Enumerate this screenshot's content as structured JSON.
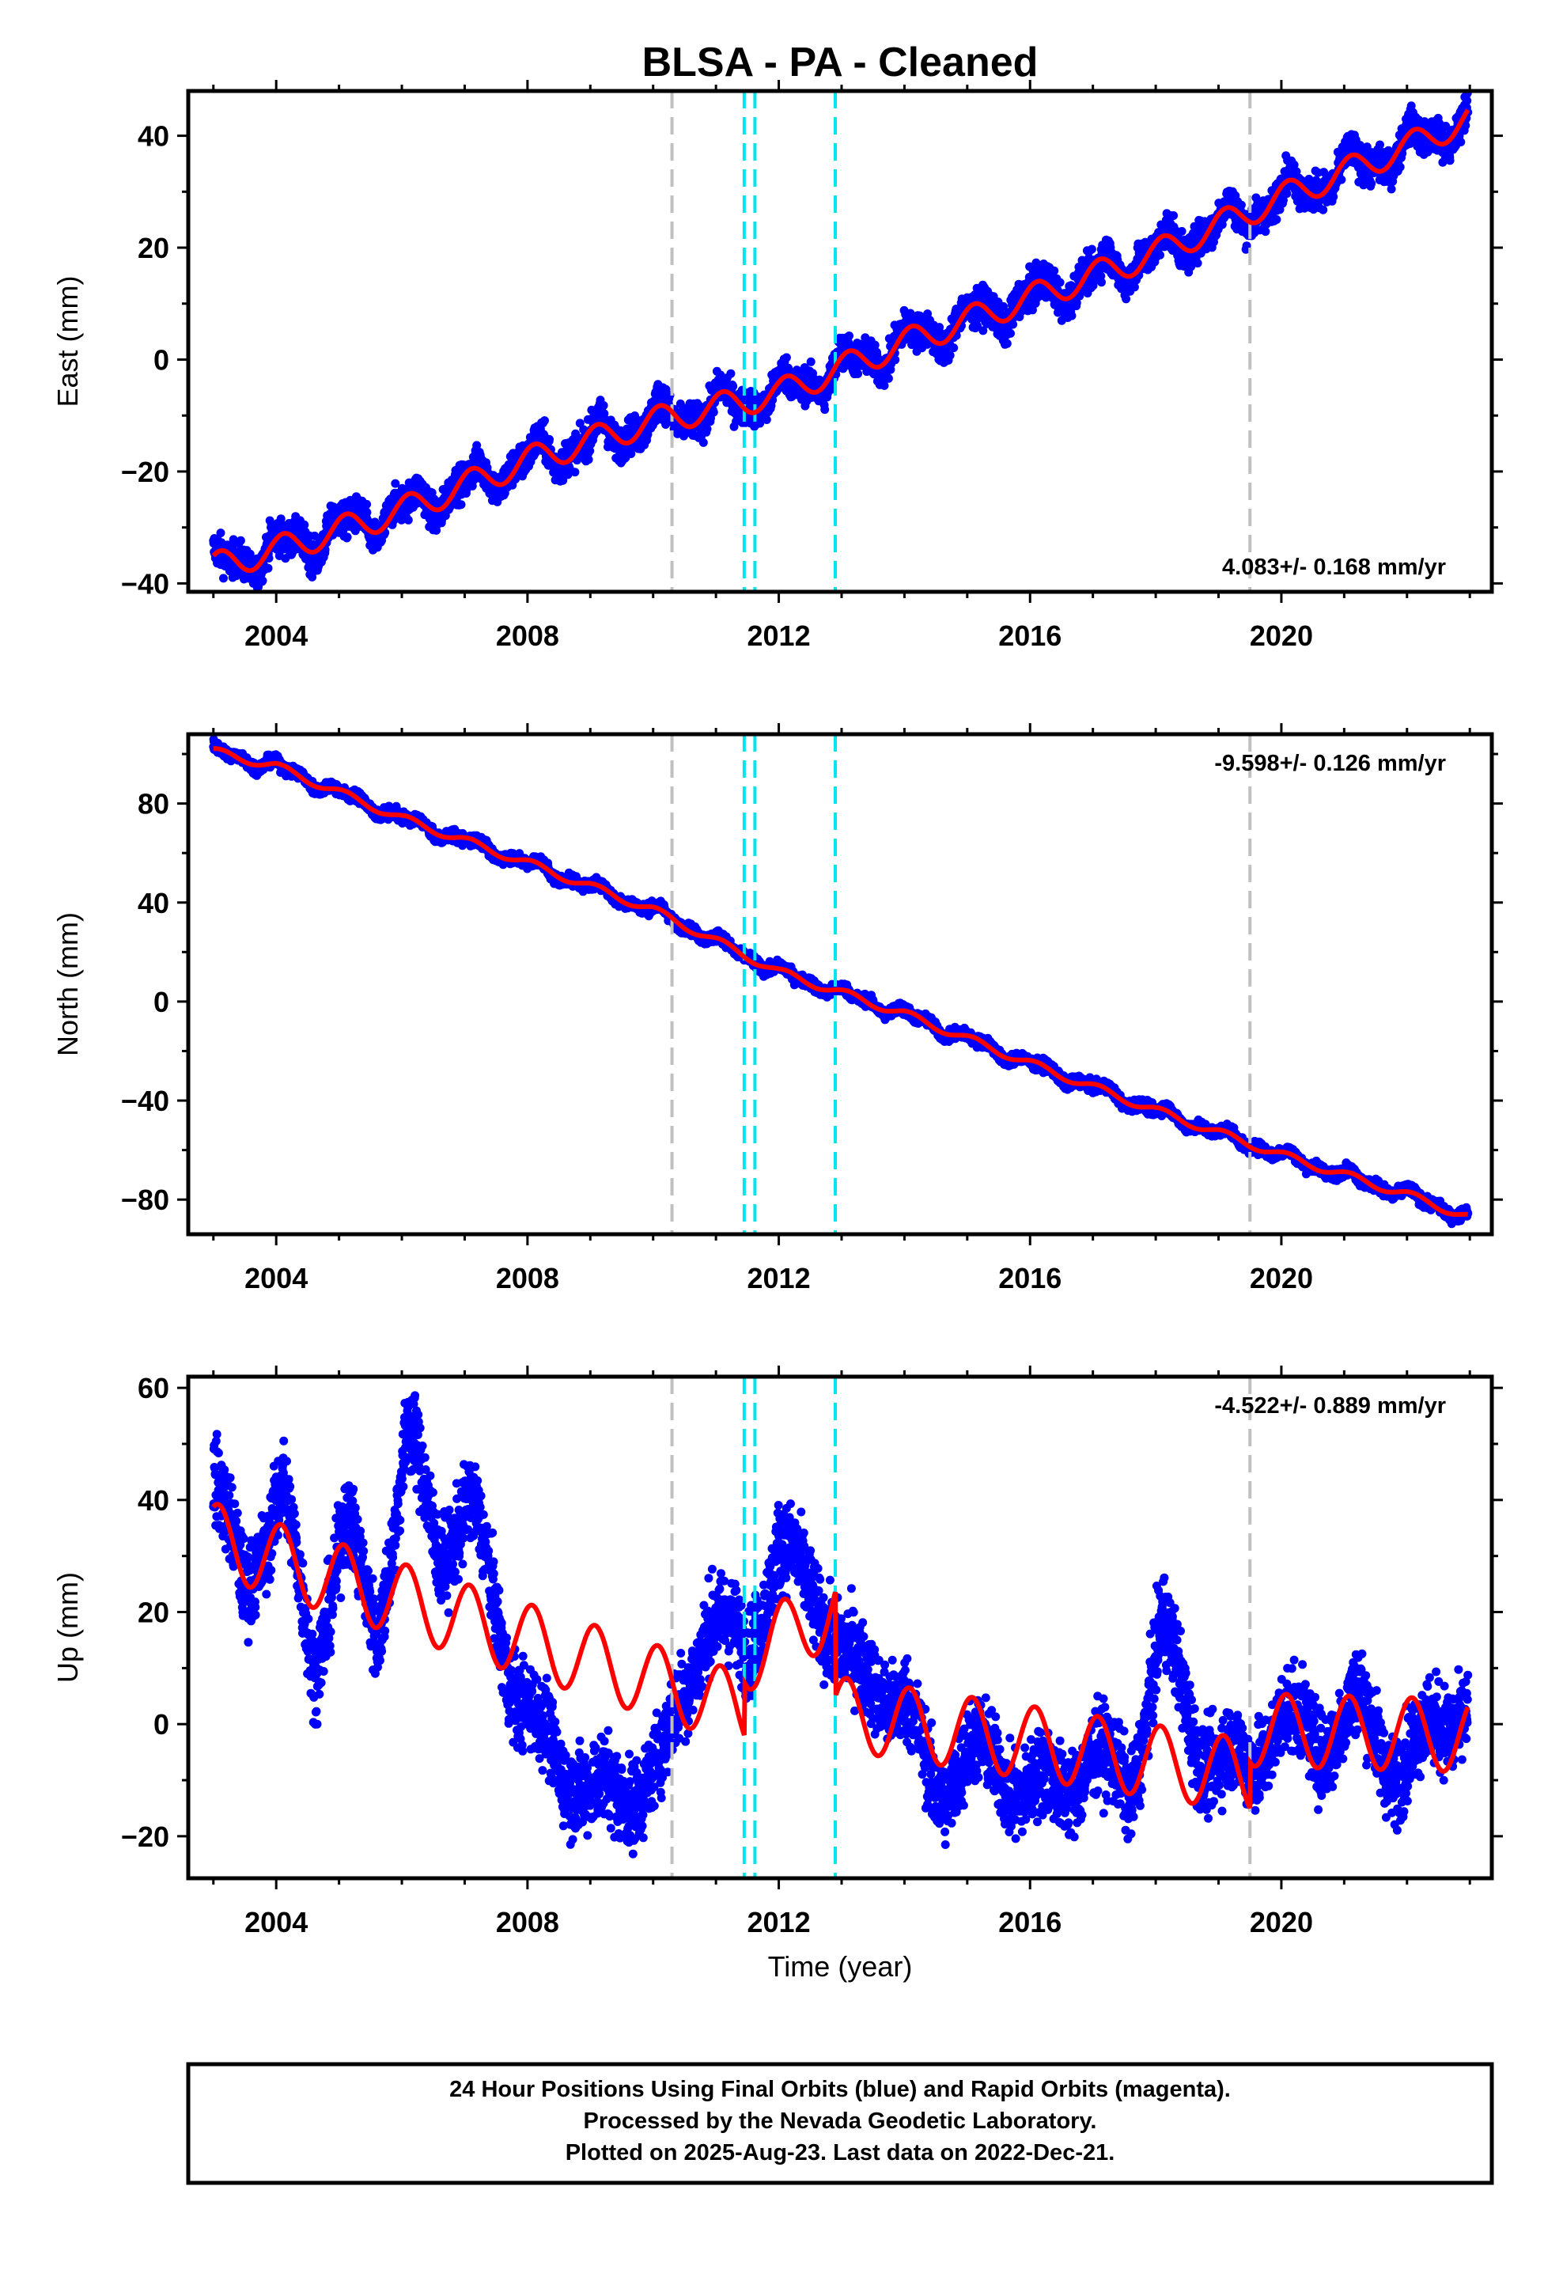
{
  "title": "BLSA  - PA - Cleaned",
  "xlabel": "Time (year)",
  "footer": {
    "line1": "24 Hour Positions Using Final Orbits (blue) and Rapid Orbits (magenta).",
    "line2": "Processed by the Nevada Geodetic Laboratory.",
    "line3": "Plotted on 2025-Aug-23. Last data on 2022-Dec-21."
  },
  "colors": {
    "data": "#0000ff",
    "model": "#ff0000",
    "equipment_change": "#c0c0c0",
    "earthquake": "#00e5ee"
  },
  "chart_data": [
    {
      "type": "scatter",
      "component": "east",
      "ylabel": "East (mm)",
      "xlim": [
        2002.6,
        2023.35
      ],
      "ylim": [
        -41.5,
        48
      ],
      "xticks": [
        2004,
        2008,
        2012,
        2016,
        2020
      ],
      "yticks": [
        -40,
        -20,
        0,
        20,
        40
      ],
      "rate_label": "4.083+/- 0.168 mm/yr",
      "rate_mm_per_yr": 4.083,
      "rate_sigma": 0.168,
      "series": [
        {
          "kind": "daily positions",
          "color": "#0000ff",
          "x_range": [
            2003.0,
            2022.97
          ]
        },
        {
          "kind": "model fit",
          "color": "#ff0000",
          "x": [
            2003.0,
            2004.0,
            2006.0,
            2008.0,
            2010.0,
            2012.0,
            2014.0,
            2016.0,
            2018.0,
            2020.0,
            2022.0,
            2022.97
          ],
          "y": [
            -37,
            -34,
            -27,
            -18,
            -11,
            -6,
            3,
            11,
            19,
            29,
            38,
            43
          ]
        }
      ]
    },
    {
      "type": "scatter",
      "component": "north",
      "ylabel": "North (mm)",
      "xlim": [
        2002.6,
        2023.35
      ],
      "ylim": [
        -94,
        108
      ],
      "xticks": [
        2004,
        2008,
        2012,
        2016,
        2020
      ],
      "yticks": [
        -80,
        -40,
        0,
        40,
        80
      ],
      "rate_label": "-9.598+/- 0.126 mm/yr",
      "rate_mm_per_yr": -9.598,
      "rate_sigma": 0.126,
      "series": [
        {
          "kind": "daily positions",
          "color": "#0000ff",
          "x_range": [
            2003.0,
            2022.97
          ]
        },
        {
          "kind": "model fit",
          "color": "#ff0000",
          "x": [
            2003.0,
            2004.0,
            2006.0,
            2008.0,
            2010.0,
            2012.0,
            2014.0,
            2016.0,
            2018.0,
            2020.0,
            2022.0,
            2022.97
          ],
          "y": [
            101,
            95,
            74,
            56,
            37,
            12,
            -5,
            -25,
            -44,
            -62,
            -78,
            -87
          ]
        }
      ]
    },
    {
      "type": "scatter",
      "component": "up",
      "ylabel": "Up (mm)",
      "xlim": [
        2002.6,
        2023.35
      ],
      "ylim": [
        -27.5,
        62
      ],
      "xticks": [
        2004,
        2008,
        2012,
        2016,
        2020
      ],
      "yticks": [
        -20,
        0,
        20,
        40,
        60
      ],
      "rate_label": "-4.522+/- 0.889 mm/yr",
      "rate_mm_per_yr": -4.522,
      "rate_sigma": 0.889,
      "series": [
        {
          "kind": "daily positions",
          "color": "#0000ff",
          "x_range": [
            2003.0,
            2022.97
          ],
          "x": [
            2003.0,
            2003.5,
            2004.1,
            2004.6,
            2005.1,
            2005.6,
            2006.1,
            2006.6,
            2007.1,
            2007.7,
            2008.5,
            2009.5,
            2010.2,
            2010.9,
            2011.5,
            2012.0,
            2012.6,
            2013.3,
            2014.0,
            2014.5,
            2015.0,
            2015.7,
            2016.5,
            2017.0,
            2017.6,
            2018.1,
            2018.7,
            2019.5,
            2020.0,
            2020.6,
            2021.2,
            2021.8,
            2022.5,
            2022.97
          ],
          "y": [
            44,
            24,
            42,
            10,
            36,
            16,
            52,
            30,
            40,
            10,
            -8,
            -14,
            -5,
            20,
            12,
            32,
            22,
            8,
            5,
            -14,
            -4,
            -10,
            -12,
            -5,
            -12,
            18,
            -5,
            -8,
            2,
            -4,
            4,
            -8,
            0,
            3
          ]
        },
        {
          "kind": "model fit",
          "color": "#ff0000",
          "x_range": [
            2003.0,
            2022.97
          ]
        }
      ]
    }
  ],
  "event_lines": {
    "equipment_change": [
      2010.3,
      2019.5
    ],
    "earthquake": [
      2011.45,
      2011.62,
      2012.9
    ]
  }
}
